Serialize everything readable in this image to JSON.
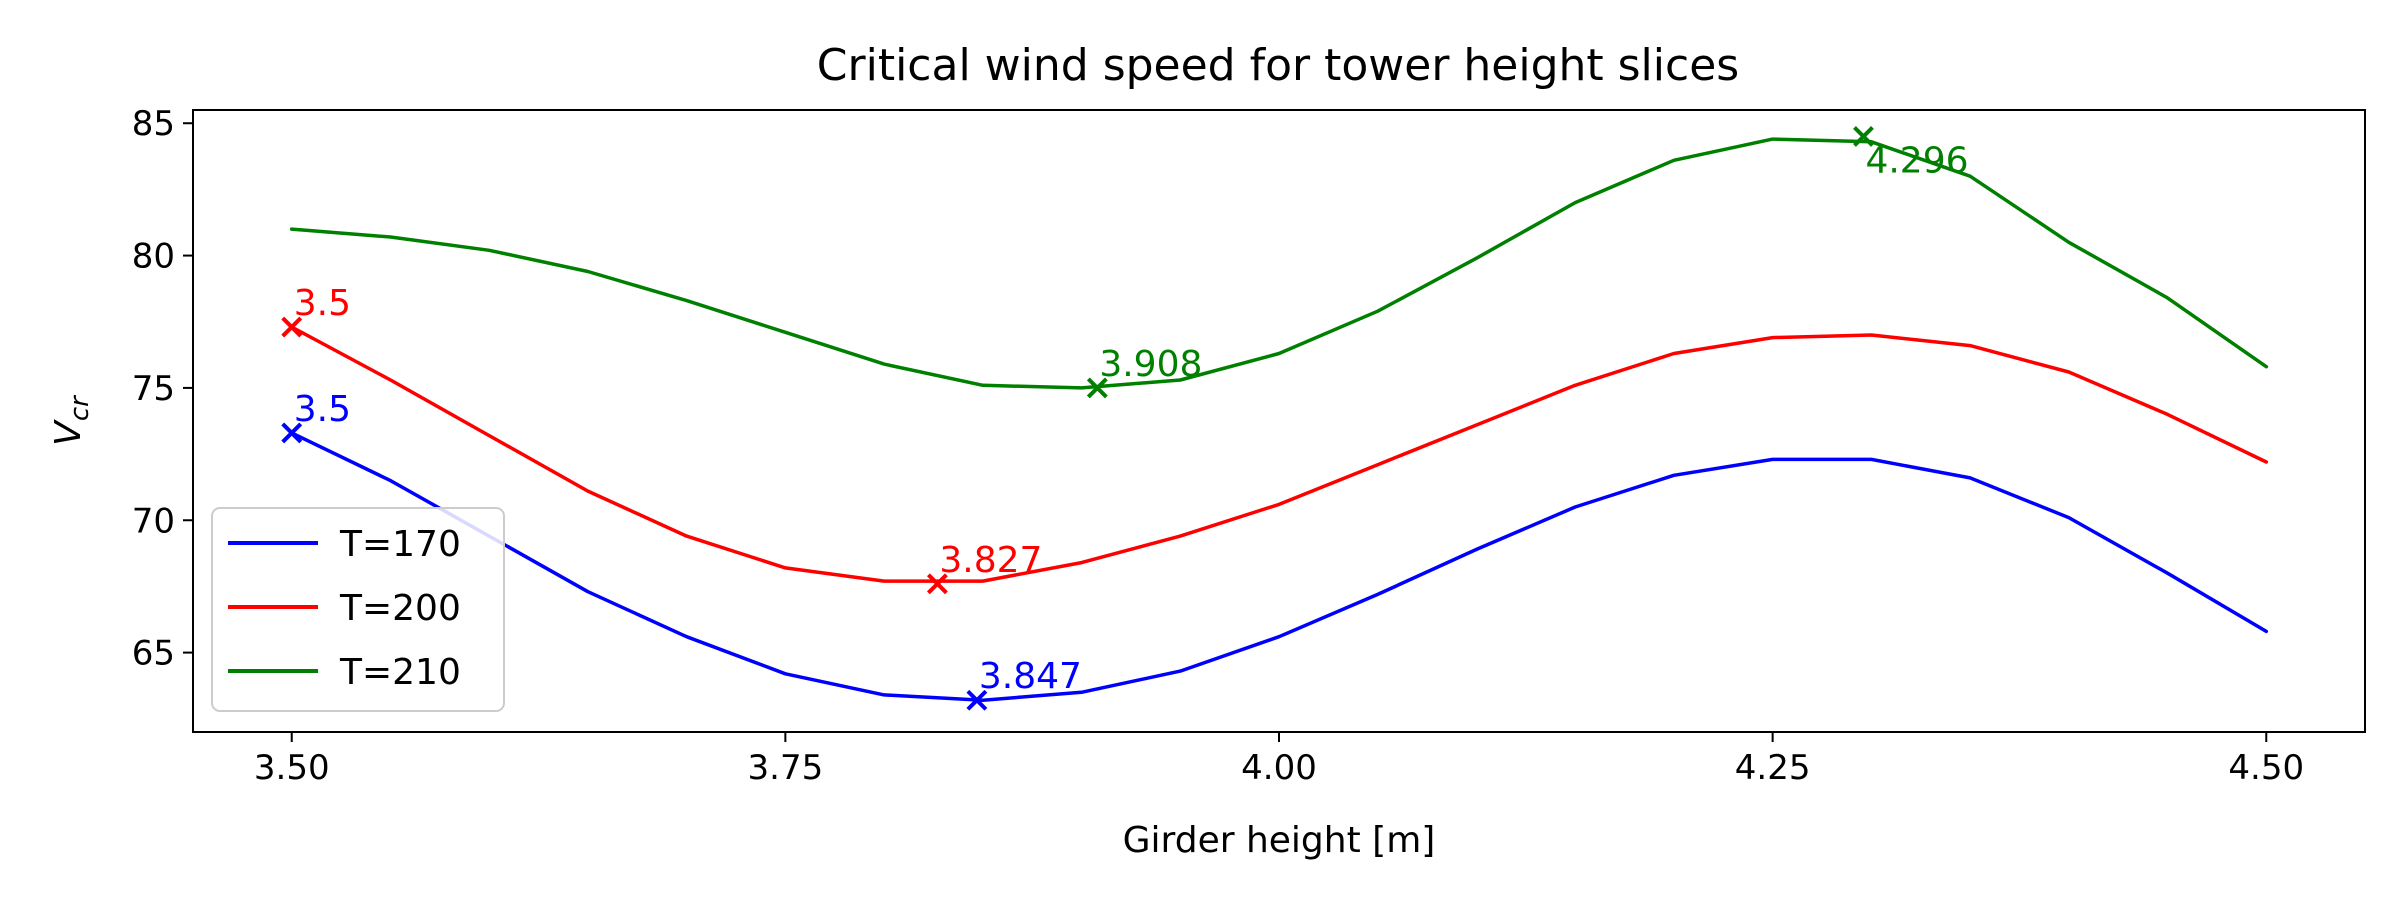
{
  "chart_data": {
    "type": "line",
    "title": "Critical wind speed for tower height slices",
    "xlabel": "Girder height [m]",
    "ylabel_main": "V",
    "ylabel_sub": "cr",
    "xlim": [
      3.45,
      4.55
    ],
    "ylim": [
      62,
      85.5
    ],
    "xticks": [
      3.5,
      3.75,
      4.0,
      4.25,
      4.5
    ],
    "xtick_labels": [
      "3.50",
      "3.75",
      "4.00",
      "4.25",
      "4.50"
    ],
    "yticks": [
      65,
      70,
      75,
      80,
      85
    ],
    "ytick_labels": [
      "65",
      "70",
      "75",
      "80",
      "85"
    ],
    "legend_position": "lower-left",
    "x": [
      3.5,
      3.55,
      3.6,
      3.65,
      3.7,
      3.75,
      3.8,
      3.85,
      3.9,
      3.95,
      4.0,
      4.05,
      4.1,
      4.15,
      4.2,
      4.25,
      4.3,
      4.35,
      4.4,
      4.45,
      4.5
    ],
    "series": [
      {
        "name": "T=170",
        "color": "#0000ff",
        "values": [
          73.3,
          71.5,
          69.4,
          67.3,
          65.6,
          64.2,
          63.4,
          63.2,
          63.5,
          64.3,
          65.6,
          67.2,
          68.9,
          70.5,
          71.7,
          72.3,
          72.3,
          71.6,
          70.1,
          68.0,
          65.8
        ],
        "marked_points": [
          {
            "x": 3.5,
            "y": 73.3,
            "label": "3.5"
          },
          {
            "x": 3.847,
            "y": 63.2,
            "label": "3.847"
          }
        ]
      },
      {
        "name": "T=200",
        "color": "#ff0000",
        "values": [
          77.3,
          75.3,
          73.2,
          71.1,
          69.4,
          68.2,
          67.7,
          67.7,
          68.4,
          69.4,
          70.6,
          72.1,
          73.6,
          75.1,
          76.3,
          76.9,
          77.0,
          76.6,
          75.6,
          74.0,
          72.2
        ],
        "marked_points": [
          {
            "x": 3.5,
            "y": 77.3,
            "label": "3.5"
          },
          {
            "x": 3.827,
            "y": 67.6,
            "label": "3.827"
          }
        ]
      },
      {
        "name": "T=210",
        "color": "#008000",
        "values": [
          81.0,
          80.7,
          80.2,
          79.4,
          78.3,
          77.1,
          75.9,
          75.1,
          75.0,
          75.3,
          76.3,
          77.9,
          79.9,
          82.0,
          83.6,
          84.4,
          84.3,
          83.0,
          80.5,
          78.4,
          75.8
        ],
        "marked_points": [
          {
            "x": 3.908,
            "y": 75.0,
            "label": "3.908"
          },
          {
            "x": 4.296,
            "y": 84.5,
            "label": "4.296"
          }
        ]
      }
    ]
  }
}
